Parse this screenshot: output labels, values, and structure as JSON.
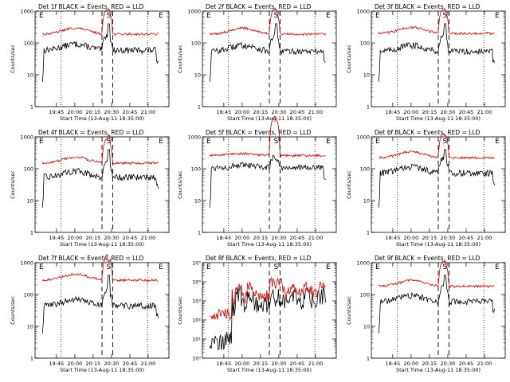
{
  "chart_data": [
    {
      "type": "line",
      "title": "Det 1f BLACK = Events, RED = LLD",
      "xlabel": "Start Time (13-Aug-11 18:35:00)",
      "ylabel": "Counts/sec",
      "scale": "log",
      "ylim": [
        1,
        1000
      ],
      "ytick_labels": [
        "1",
        "10",
        "100",
        "1000"
      ],
      "xtick_labels": [
        "19:45",
        "20:00",
        "20:15",
        "20:30",
        "20:45",
        "21:00"
      ],
      "markers": [
        "E",
        "S",
        "E"
      ],
      "profile": "A",
      "series": [
        {
          "name": "Events",
          "color": "#000000",
          "base": 60
        },
        {
          "name": "LLD",
          "color": "#cc0000",
          "base": 190
        }
      ]
    },
    {
      "type": "line",
      "title": "Det 2f BLACK = Events, RED = LLD",
      "xlabel": "Start Time (13-Aug-11 18:35:00)",
      "ylabel": "Counts/sec",
      "scale": "log",
      "ylim": [
        1,
        1000
      ],
      "ytick_labels": [
        "1",
        "10",
        "100",
        "1000"
      ],
      "xtick_labels": [
        "18:45",
        "20:00",
        "20:15",
        "20:30",
        "20:45",
        "21:00"
      ],
      "markers": [
        "E",
        "S",
        "E"
      ],
      "profile": "A",
      "series": [
        {
          "name": "Events",
          "color": "#000000",
          "base": 55
        },
        {
          "name": "LLD",
          "color": "#cc0000",
          "base": 190
        }
      ]
    },
    {
      "type": "line",
      "title": "Det 3f BLACK = Events, RED = LLD",
      "xlabel": "Start Time (13-Aug-11 18:35:00)",
      "ylabel": "Counts/sec",
      "scale": "log",
      "ylim": [
        1,
        1000
      ],
      "ytick_labels": [
        "1",
        "10",
        "100",
        "1000"
      ],
      "xtick_labels": [
        "18:45",
        "20:00",
        "20:15",
        "20:30",
        "20:45",
        "21:00"
      ],
      "markers": [
        "E",
        "S",
        "E"
      ],
      "profile": "B",
      "series": [
        {
          "name": "Events",
          "color": "#000000",
          "base": 55
        },
        {
          "name": "LLD",
          "color": "#cc0000",
          "base": 200
        }
      ]
    },
    {
      "type": "line",
      "title": "Det 4f BLACK = Events, RED = LLD",
      "xlabel": "Start Time (13-Aug-11 18:35:00)",
      "ylabel": "Counts/sec",
      "scale": "log",
      "ylim": [
        1,
        1000
      ],
      "ytick_labels": [
        "1",
        "10",
        "100",
        "1000"
      ],
      "xtick_labels": [
        "19:45",
        "20:00",
        "20:15",
        "20:30",
        "20:45",
        "21:00"
      ],
      "markers": [
        "E",
        "S",
        "E"
      ],
      "profile": "A",
      "series": [
        {
          "name": "Events",
          "color": "#000000",
          "base": 55
        },
        {
          "name": "LLD",
          "color": "#cc0000",
          "base": 150
        }
      ]
    },
    {
      "type": "line",
      "title": "Det 5f BLACK = Events, RED = LLD",
      "xlabel": "Start Time (13-Aug-11 18:35:00)",
      "ylabel": "Counts/sec",
      "scale": "log",
      "ylim": [
        1,
        1000
      ],
      "ytick_labels": [
        "1",
        "10",
        "100",
        "1000"
      ],
      "xtick_labels": [
        "18:45",
        "20:00",
        "20:15",
        "20:30",
        "20:45",
        "21:00"
      ],
      "markers": [
        "E",
        "S",
        "E"
      ],
      "profile": "C",
      "series": [
        {
          "name": "Events",
          "color": "#000000",
          "base": 110
        },
        {
          "name": "LLD",
          "color": "#cc0000",
          "base": 260
        }
      ]
    },
    {
      "type": "line",
      "title": "Det 6f BLACK = Events, RED = LLD",
      "xlabel": "Start Time (13-Aug-11 18:35:00)",
      "ylabel": "Counts/sec",
      "scale": "log",
      "ylim": [
        1,
        1000
      ],
      "ytick_labels": [
        "1",
        "10",
        "100",
        "1000"
      ],
      "xtick_labels": [
        "18:45",
        "20:00",
        "20:15",
        "20:30",
        "20:45",
        "21:00"
      ],
      "markers": [
        "E",
        "S",
        "E"
      ],
      "profile": "B",
      "series": [
        {
          "name": "Events",
          "color": "#000000",
          "base": 75
        },
        {
          "name": "LLD",
          "color": "#cc0000",
          "base": 220
        }
      ]
    },
    {
      "type": "line",
      "title": "Det 7f BLACK = Events, RED = LLD",
      "xlabel": "Start Time (13-Aug-11 18:35:00)",
      "ylabel": "Counts/sec",
      "scale": "log",
      "ylim": [
        1,
        1000
      ],
      "ytick_labels": [
        "1",
        "10",
        "100",
        "1000"
      ],
      "xtick_labels": [
        "19:45",
        "20:00",
        "20:15",
        "20:30",
        "20:45",
        "21:00"
      ],
      "markers": [
        "E",
        "S",
        "E"
      ],
      "profile": "A",
      "series": [
        {
          "name": "Events",
          "color": "#000000",
          "base": 45
        },
        {
          "name": "LLD",
          "color": "#cc0000",
          "base": 280
        }
      ]
    },
    {
      "type": "line",
      "title": "Det 8f BLACK = Events, RED = LLD",
      "xlabel": "Start Time (13-Aug-11 18:35:00)",
      "ylabel": "Counts/sec",
      "scale": "log",
      "ylim": [
        1,
        100000
      ],
      "ytick_labels": [
        "10⁰",
        "10¹",
        "10²",
        "10³",
        "10⁴",
        "10⁵"
      ],
      "xtick_labels": [
        "18:45",
        "20:00",
        "20:15",
        "20:30",
        "20:45",
        "21:00"
      ],
      "markers": [
        "E",
        "S",
        "E"
      ],
      "profile": "D",
      "series": [
        {
          "name": "Events",
          "color": "#000000",
          "base": 1000
        },
        {
          "name": "LLD",
          "color": "#cc0000",
          "base": 3000
        }
      ]
    },
    {
      "type": "line",
      "title": "Det 9f BLACK = Events, RED = LLD",
      "xlabel": "Start Time (13-Aug-11 18:35:00)",
      "ylabel": "Counts/sec",
      "scale": "log",
      "ylim": [
        1,
        1000
      ],
      "ytick_labels": [
        "1",
        "10",
        "100",
        "1000"
      ],
      "xtick_labels": [
        "18:45",
        "20:00",
        "20:15",
        "20:30",
        "20:45",
        "21:00"
      ],
      "markers": [
        "E",
        "S",
        "E"
      ],
      "profile": "B",
      "series": [
        {
          "name": "Events",
          "color": "#000000",
          "base": 60
        },
        {
          "name": "LLD",
          "color": "#cc0000",
          "base": 180
        }
      ]
    }
  ]
}
